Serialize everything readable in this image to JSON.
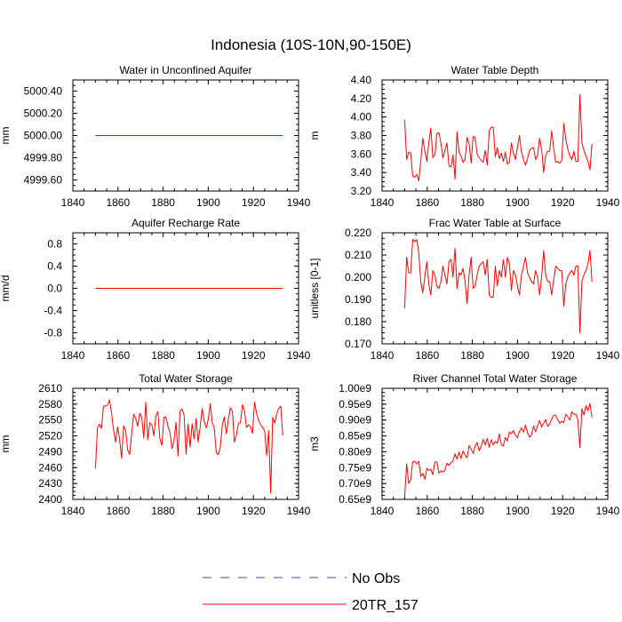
{
  "title": "Indonesia (10S-10N,90-150E)",
  "colors": {
    "model": "#ff0000",
    "obs": "#4040c0",
    "axis": "#000000"
  },
  "legend": {
    "items": [
      {
        "label": "No Obs",
        "style": "dashed",
        "color": "#4040c0"
      },
      {
        "label": "20TR_157",
        "style": "solid",
        "color": "#ff0000"
      }
    ]
  },
  "chart_data": [
    {
      "type": "line",
      "title": "Water in Unconfined Aquifer",
      "ylabel": "mm",
      "xlabel": "",
      "xlim": [
        1840,
        1940
      ],
      "ylim": [
        4999.5,
        5000.5
      ],
      "xticks": [
        1840,
        1860,
        1880,
        1900,
        1920,
        1940
      ],
      "yticks": [
        4999.6,
        4999.8,
        5000.0,
        5000.2,
        5000.4
      ],
      "ytick_labels": [
        "4999.60",
        "4999.80",
        "5000.00",
        "5000.20",
        "5000.40"
      ],
      "x_start": 1850,
      "x_end": 1933,
      "series": [
        {
          "name": "20TR_157",
          "constant": 5000.0
        }
      ]
    },
    {
      "type": "line",
      "title": "Water Table Depth",
      "ylabel": "m",
      "xlabel": "",
      "xlim": [
        1840,
        1940
      ],
      "ylim": [
        3.2,
        4.4
      ],
      "xticks": [
        1840,
        1860,
        1880,
        1900,
        1920,
        1940
      ],
      "yticks": [
        3.2,
        3.4,
        3.6,
        3.8,
        4.0,
        4.2,
        4.4
      ],
      "ytick_labels": [
        "3.20",
        "3.40",
        "3.60",
        "3.80",
        "4.00",
        "4.20",
        "4.40"
      ],
      "x_start": 1850,
      "x_end": 1933,
      "series": [
        {
          "name": "20TR_157",
          "values": [
            3.97,
            3.54,
            3.62,
            3.61,
            3.36,
            3.35,
            3.38,
            3.31,
            3.52,
            3.77,
            3.64,
            3.52,
            3.72,
            3.88,
            3.56,
            3.59,
            3.82,
            3.83,
            3.72,
            3.56,
            3.64,
            3.72,
            3.47,
            3.46,
            3.59,
            3.33,
            3.84,
            3.62,
            3.58,
            3.51,
            3.54,
            3.78,
            3.71,
            3.5,
            3.79,
            3.78,
            3.6,
            3.56,
            3.53,
            3.51,
            3.64,
            3.48,
            3.85,
            3.89,
            3.89,
            3.57,
            3.67,
            3.55,
            3.61,
            3.52,
            3.62,
            3.49,
            3.51,
            3.72,
            3.61,
            3.54,
            3.67,
            3.8,
            3.62,
            3.54,
            3.48,
            3.55,
            3.64,
            3.66,
            3.67,
            3.54,
            3.58,
            3.77,
            3.65,
            3.4,
            3.58,
            3.63,
            3.63,
            3.85,
            3.66,
            3.51,
            3.52,
            3.5,
            3.53,
            3.93,
            3.76,
            3.65,
            3.58,
            3.54,
            3.63,
            3.52,
            3.52,
            4.24,
            3.72,
            3.64,
            3.58,
            3.52,
            3.43,
            3.71
          ]
        }
      ]
    },
    {
      "type": "line",
      "title": "Aquifer Recharge Rate",
      "ylabel": "mm/d",
      "xlabel": "",
      "xlim": [
        1840,
        1940
      ],
      "ylim": [
        -1.0,
        1.0
      ],
      "xticks": [
        1840,
        1860,
        1880,
        1900,
        1920,
        1940
      ],
      "yticks": [
        -0.8,
        -0.4,
        0.0,
        0.4,
        0.8
      ],
      "ytick_labels": [
        "-0.8",
        "-0.4",
        "0.0",
        "0.4",
        "0.8"
      ],
      "x_start": 1850,
      "x_end": 1933,
      "series": [
        {
          "name": "20TR_157",
          "constant": 0.0
        }
      ]
    },
    {
      "type": "line",
      "title": "Frac Water Table at Surface",
      "ylabel": "unitless [0-1]",
      "xlabel": "",
      "xlim": [
        1840,
        1940
      ],
      "ylim": [
        0.17,
        0.22
      ],
      "xticks": [
        1840,
        1860,
        1880,
        1900,
        1920,
        1940
      ],
      "yticks": [
        0.17,
        0.18,
        0.19,
        0.2,
        0.21,
        0.22
      ],
      "ytick_labels": [
        "0.170",
        "0.180",
        "0.190",
        "0.200",
        "0.210",
        "0.220"
      ],
      "x_start": 1850,
      "x_end": 1933,
      "series": [
        {
          "name": "20TR_157",
          "values": [
            0.186,
            0.209,
            0.202,
            0.202,
            0.217,
            0.216,
            0.217,
            0.211,
            0.198,
            0.193,
            0.2,
            0.207,
            0.197,
            0.192,
            0.203,
            0.201,
            0.196,
            0.195,
            0.198,
            0.205,
            0.201,
            0.197,
            0.207,
            0.208,
            0.2,
            0.213,
            0.195,
            0.202,
            0.201,
            0.204,
            0.198,
            0.188,
            0.201,
            0.209,
            0.195,
            0.196,
            0.201,
            0.205,
            0.206,
            0.207,
            0.201,
            0.208,
            0.192,
            0.191,
            0.191,
            0.205,
            0.196,
            0.203,
            0.2,
            0.208,
            0.2,
            0.209,
            0.206,
            0.194,
            0.203,
            0.201,
            0.196,
            0.192,
            0.201,
            0.205,
            0.209,
            0.202,
            0.2,
            0.198,
            0.197,
            0.203,
            0.2,
            0.192,
            0.2,
            0.212,
            0.201,
            0.198,
            0.198,
            0.192,
            0.199,
            0.205,
            0.204,
            0.203,
            0.203,
            0.187,
            0.197,
            0.2,
            0.202,
            0.203,
            0.201,
            0.205,
            0.205,
            0.175,
            0.198,
            0.201,
            0.203,
            0.206,
            0.212,
            0.198
          ]
        }
      ]
    },
    {
      "type": "line",
      "title": "Total Water Storage",
      "ylabel": "mm",
      "xlabel": "",
      "xlim": [
        1840,
        1940
      ],
      "ylim": [
        2400,
        2610
      ],
      "xticks": [
        1840,
        1860,
        1880,
        1900,
        1920,
        1940
      ],
      "yticks": [
        2400,
        2430,
        2460,
        2490,
        2520,
        2550,
        2580,
        2610
      ],
      "ytick_labels": [
        "2400",
        "2430",
        "2460",
        "2490",
        "2520",
        "2550",
        "2580",
        "2610"
      ],
      "x_start": 1850,
      "x_end": 1933,
      "series": [
        {
          "name": "20TR_157",
          "values": [
            2458,
            2535,
            2542,
            2534,
            2576,
            2577,
            2578,
            2588,
            2564,
            2531,
            2508,
            2537,
            2514,
            2478,
            2539,
            2531,
            2493,
            2485,
            2524,
            2561,
            2553,
            2538,
            2563,
            2555,
            2516,
            2584,
            2513,
            2545,
            2541,
            2520,
            2558,
            2566,
            2515,
            2502,
            2555,
            2556,
            2538,
            2527,
            2496,
            2510,
            2546,
            2482,
            2567,
            2571,
            2560,
            2485,
            2543,
            2499,
            2543,
            2514,
            2553,
            2508,
            2537,
            2572,
            2548,
            2535,
            2551,
            2581,
            2545,
            2535,
            2489,
            2484,
            2499,
            2540,
            2556,
            2524,
            2551,
            2573,
            2567,
            2508,
            2522,
            2544,
            2545,
            2579,
            2567,
            2536,
            2541,
            2537,
            2525,
            2584,
            2563,
            2549,
            2541,
            2536,
            2530,
            2483,
            2530,
            2412,
            2555,
            2544,
            2562,
            2572,
            2576,
            2521
          ]
        }
      ]
    },
    {
      "type": "line",
      "title": "River Channel Total Water Storage",
      "ylabel": "m3",
      "xlabel": "",
      "xlim": [
        1840,
        1940
      ],
      "ylim": [
        0.65,
        1.0
      ],
      "xticks": [
        1840,
        1860,
        1880,
        1900,
        1920,
        1940
      ],
      "yticks": [
        0.65,
        0.7,
        0.75,
        0.8,
        0.85,
        0.9,
        0.95,
        1.0
      ],
      "ytick_labels": [
        "0.65e9",
        "0.70e9",
        "0.75e9",
        "0.80e9",
        "0.85e9",
        "0.90e9",
        "0.95e9",
        "1.00e9"
      ],
      "y_unit_scale": "1e9",
      "x_start": 1850,
      "x_end": 1933,
      "series": [
        {
          "name": "20TR_157",
          "values": [
            0.658,
            0.762,
            0.7,
            0.712,
            0.768,
            0.77,
            0.762,
            0.77,
            0.722,
            0.732,
            0.713,
            0.748,
            0.741,
            0.745,
            0.728,
            0.768,
            0.768,
            0.733,
            0.74,
            0.736,
            0.742,
            0.764,
            0.757,
            0.766,
            0.77,
            0.793,
            0.777,
            0.799,
            0.779,
            0.803,
            0.79,
            0.781,
            0.82,
            0.808,
            0.795,
            0.818,
            0.829,
            0.803,
            0.817,
            0.839,
            0.821,
            0.842,
            0.814,
            0.838,
            0.822,
            0.833,
            0.827,
            0.856,
            0.822,
            0.818,
            0.845,
            0.834,
            0.862,
            0.857,
            0.867,
            0.852,
            0.844,
            0.865,
            0.875,
            0.862,
            0.884,
            0.86,
            0.846,
            0.853,
            0.881,
            0.863,
            0.882,
            0.898,
            0.878,
            0.889,
            0.902,
            0.88,
            0.887,
            0.903,
            0.915,
            0.914,
            0.901,
            0.89,
            0.896,
            0.892,
            0.918,
            0.91,
            0.9,
            0.926,
            0.918,
            0.918,
            0.901,
            0.813,
            0.936,
            0.916,
            0.945,
            0.93,
            0.952,
            0.908
          ]
        }
      ]
    }
  ]
}
